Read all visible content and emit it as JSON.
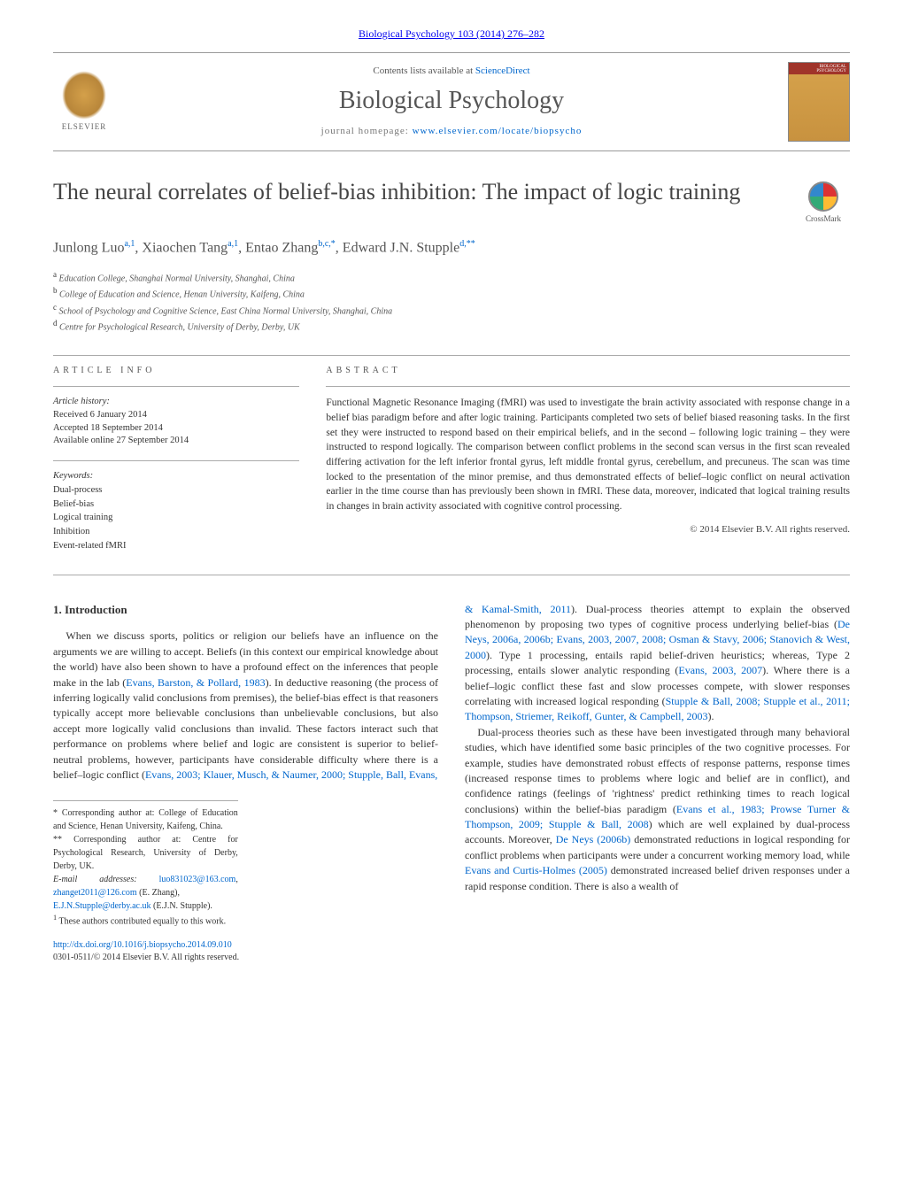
{
  "journal_ref": "Biological Psychology 103 (2014) 276–282",
  "header": {
    "contents_prefix": "Contents lists available at ",
    "contents_link": "ScienceDirect",
    "journal_name": "Biological Psychology",
    "homepage_prefix": "journal homepage: ",
    "homepage_link": "www.elsevier.com/locate/biopsycho",
    "elsevier_label": "ELSEVIER",
    "cover_label": "BIOLOGICAL PSYCHOLOGY"
  },
  "crossmark_label": "CrossMark",
  "title": "The neural correlates of belief-bias inhibition: The impact of logic training",
  "authors_html": "Junlong Luo<sup>a,1</sup>, Xiaochen Tang<sup>a,1</sup>, Entao Zhang<sup>b,c,*</sup>, Edward J.N. Stupple<sup>d,**</sup>",
  "affiliations": [
    {
      "sup": "a",
      "text": "Education College, Shanghai Normal University, Shanghai, China"
    },
    {
      "sup": "b",
      "text": "College of Education and Science, Henan University, Kaifeng, China"
    },
    {
      "sup": "c",
      "text": "School of Psychology and Cognitive Science, East China Normal University, Shanghai, China"
    },
    {
      "sup": "d",
      "text": "Centre for Psychological Research, University of Derby, Derby, UK"
    }
  ],
  "article_info": {
    "label": "ARTICLE INFO",
    "history_label": "Article history:",
    "history": [
      "Received 6 January 2014",
      "Accepted 18 September 2014",
      "Available online 27 September 2014"
    ],
    "keywords_label": "Keywords:",
    "keywords": [
      "Dual-process",
      "Belief-bias",
      "Logical training",
      "Inhibition",
      "Event-related fMRI"
    ]
  },
  "abstract": {
    "label": "ABSTRACT",
    "text": "Functional Magnetic Resonance Imaging (fMRI) was used to investigate the brain activity associated with response change in a belief bias paradigm before and after logic training. Participants completed two sets of belief biased reasoning tasks. In the first set they were instructed to respond based on their empirical beliefs, and in the second – following logic training – they were instructed to respond logically. The comparison between conflict problems in the second scan versus in the first scan revealed differing activation for the left inferior frontal gyrus, left middle frontal gyrus, cerebellum, and precuneus. The scan was time locked to the presentation of the minor premise, and thus demonstrated effects of belief–logic conflict on neural activation earlier in the time course than has previously been shown in fMRI. These data, moreover, indicated that logical training results in changes in brain activity associated with cognitive control processing.",
    "copyright": "© 2014 Elsevier B.V. All rights reserved."
  },
  "body": {
    "section_heading": "1. Introduction",
    "left_para": "When we discuss sports, politics or religion our beliefs have an influence on the arguments we are willing to accept. Beliefs (in this context our empirical knowledge about the world) have also been shown to have a profound effect on the inferences that people make in the lab (<a href='#'>Evans, Barston, & Pollard, 1983</a>). In deductive reasoning (the process of inferring logically valid conclusions from premises), the belief-bias effect is that reasoners typically accept more believable conclusions than unbelievable conclusions, but also accept more logically valid conclusions than invalid. These factors interact such that performance on problems where belief and logic are consistent is superior to belief-neutral problems, however, participants have considerable difficulty where there is a belief–logic conflict (<a href='#'>Evans, 2003; Klauer, Musch, & Naumer, 2000; Stupple, Ball, Evans,</a>",
    "right_para1": "<a href='#'>& Kamal-Smith, 2011</a>). Dual-process theories attempt to explain the observed phenomenon by proposing two types of cognitive process underlying belief-bias (<a href='#'>De Neys, 2006a, 2006b; Evans, 2003, 2007, 2008; Osman & Stavy, 2006; Stanovich & West, 2000</a>). Type 1 processing, entails rapid belief-driven heuristics; whereas, Type 2 processing, entails slower analytic responding (<a href='#'>Evans, 2003, 2007</a>). Where there is a belief–logic conflict these fast and slow processes compete, with slower responses correlating with increased logical responding (<a href='#'>Stupple & Ball, 2008; Stupple et al., 2011; Thompson, Striemer, Reikoff, Gunter, & Campbell, 2003</a>).",
    "right_para2": "Dual-process theories such as these have been investigated through many behavioral studies, which have identified some basic principles of the two cognitive processes. For example, studies have demonstrated robust effects of response patterns, response times (increased response times to problems where logic and belief are in conflict), and confidence ratings (feelings of 'rightness' predict rethinking times to reach logical conclusions) within the belief-bias paradigm (<a href='#'>Evans et al., 1983; Prowse Turner & Thompson, 2009; Stupple & Ball, 2008</a>) which are well explained by dual-process accounts. Moreover, <a href='#'>De Neys (2006b)</a> demonstrated reductions in logical responding for conflict problems when participants were under a concurrent working memory load, while <a href='#'>Evans and Curtis-Holmes (2005)</a> demonstrated increased belief driven responses under a rapid response condition. There is also a wealth of"
  },
  "footnotes": {
    "corr1": "Corresponding author at: College of Education and Science, Henan University, Kaifeng, China.",
    "corr2": "Corresponding author at: Centre for Psychological Research, University of Derby, Derby, UK.",
    "email_label": "E-mail addresses:",
    "email1": "luo831023@163.com",
    "email2": "zhanget2011@126.com",
    "email2_name": "(E. Zhang),",
    "email3": "E.J.N.Stupple@derby.ac.uk",
    "email3_name": "(E.J.N. Stupple).",
    "equal": "These authors contributed equally to this work."
  },
  "doi": {
    "link": "http://dx.doi.org/10.1016/j.biopsycho.2014.09.010",
    "issn": "0301-0511/© 2014 Elsevier B.V. All rights reserved."
  },
  "colors": {
    "link": "#0066cc",
    "text": "#333333",
    "heading": "#444444",
    "muted": "#555555"
  }
}
